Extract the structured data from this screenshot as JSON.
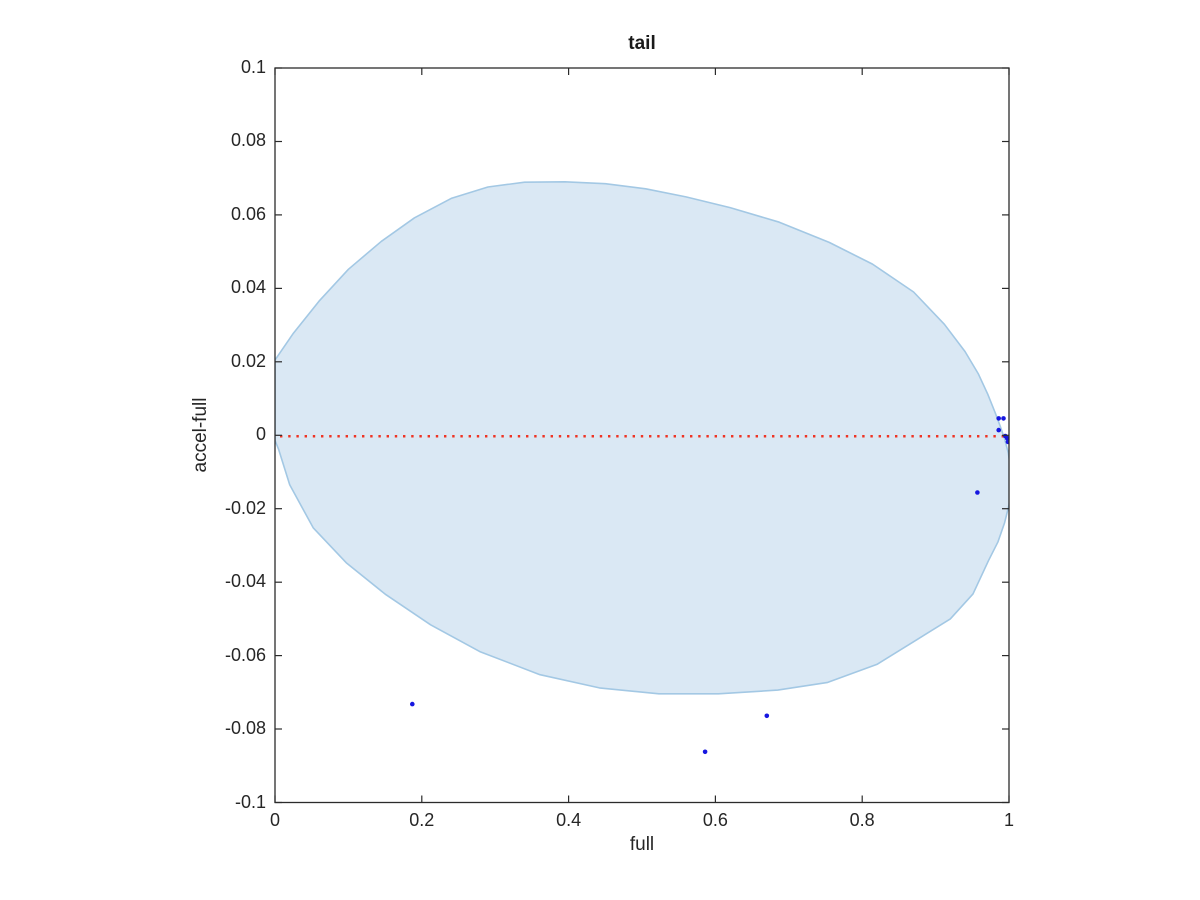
{
  "figure": {
    "background": "#ffffff",
    "axes_color": "#2b2b2b",
    "text_color": "#262626"
  },
  "chart_data": {
    "type": "scatter",
    "title": "tail",
    "xlabel": "full",
    "ylabel": "accel-full",
    "xlim": [
      0,
      1
    ],
    "ylim": [
      -0.1,
      0.1
    ],
    "grid": false,
    "box": true,
    "legend": null,
    "xticks": [
      0,
      0.2,
      0.4,
      0.6,
      0.8,
      1
    ],
    "xtick_labels": [
      "0",
      "0.2",
      "0.4",
      "0.6",
      "0.8",
      "1"
    ],
    "yticks": [
      -0.1,
      -0.08,
      -0.06,
      -0.04,
      -0.02,
      0,
      0.02,
      0.04,
      0.06,
      0.08,
      0.1
    ],
    "ytick_labels": [
      "-0.1",
      "-0.08",
      "-0.06",
      "-0.04",
      "-0.02",
      "0",
      "0.02",
      "0.04",
      "0.06",
      "0.08",
      "0.1"
    ],
    "zero_line": {
      "y": 0,
      "color": "#ef3424",
      "style": "dotted"
    },
    "region": {
      "name": "shaded-ellipse-region",
      "fill": "#dae8f4",
      "stroke": "#a3c8e4",
      "boundary": [
        [
          0.0,
          0.0205
        ],
        [
          0.025,
          0.0278
        ],
        [
          0.06,
          0.0365
        ],
        [
          0.1,
          0.0452
        ],
        [
          0.145,
          0.0528
        ],
        [
          0.19,
          0.0592
        ],
        [
          0.24,
          0.0645
        ],
        [
          0.29,
          0.0676
        ],
        [
          0.34,
          0.0689
        ],
        [
          0.395,
          0.069
        ],
        [
          0.45,
          0.0685
        ],
        [
          0.505,
          0.0671
        ],
        [
          0.56,
          0.0649
        ],
        [
          0.62,
          0.062
        ],
        [
          0.687,
          0.058
        ],
        [
          0.755,
          0.0525
        ],
        [
          0.814,
          0.0466
        ],
        [
          0.87,
          0.039
        ],
        [
          0.912,
          0.0302
        ],
        [
          0.94,
          0.0228
        ],
        [
          0.958,
          0.0168
        ],
        [
          0.971,
          0.0112
        ],
        [
          0.981,
          0.0062
        ],
        [
          0.988,
          0.0025
        ],
        [
          0.994,
          -0.001
        ],
        [
          0.999,
          -0.0048
        ],
        [
          1.002,
          -0.009
        ],
        [
          1.003,
          -0.014
        ],
        [
          1.0,
          -0.019
        ],
        [
          0.994,
          -0.0238
        ],
        [
          0.985,
          -0.029
        ],
        [
          0.972,
          -0.0342
        ],
        [
          0.951,
          -0.0432
        ],
        [
          0.92,
          -0.05
        ],
        [
          0.875,
          -0.0556
        ],
        [
          0.82,
          -0.0624
        ],
        [
          0.753,
          -0.0673
        ],
        [
          0.685,
          -0.0694
        ],
        [
          0.604,
          -0.0704
        ],
        [
          0.523,
          -0.0704
        ],
        [
          0.442,
          -0.0688
        ],
        [
          0.361,
          -0.0652
        ],
        [
          0.279,
          -0.0589
        ],
        [
          0.212,
          -0.0516
        ],
        [
          0.151,
          -0.0434
        ],
        [
          0.097,
          -0.0347
        ],
        [
          0.052,
          -0.0252
        ],
        [
          0.02,
          -0.0135
        ],
        [
          0.005,
          -0.0039
        ],
        [
          0.0,
          -0.0014
        ]
      ]
    },
    "points": {
      "color": "#1616e0",
      "marker": "dot",
      "data": [
        [
          0.187,
          -0.0732
        ],
        [
          0.586,
          -0.0862
        ],
        [
          0.67,
          -0.0764
        ],
        [
          0.957,
          -0.0156
        ],
        [
          0.986,
          0.0046
        ],
        [
          0.9925,
          0.0046
        ],
        [
          0.986,
          0.0014
        ],
        [
          0.995,
          -0.0002
        ],
        [
          0.9975,
          -0.0008
        ],
        [
          0.9985,
          -0.0018
        ]
      ]
    }
  }
}
